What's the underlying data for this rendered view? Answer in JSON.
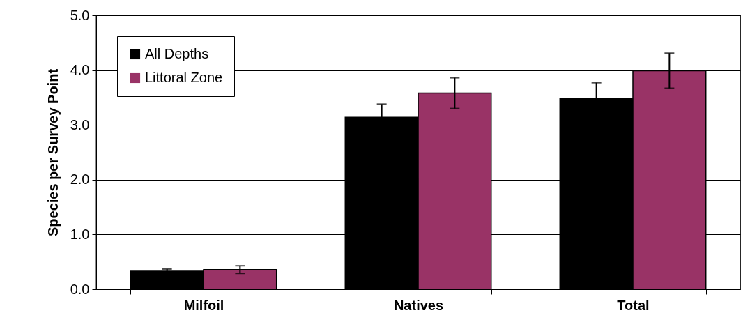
{
  "chart_data": {
    "type": "bar",
    "ylabel": "Species per Survey Point",
    "categories": [
      "Milfoil",
      "Natives",
      "Total"
    ],
    "series": [
      {
        "name": "All Depths",
        "color": "#000000",
        "values": [
          0.33,
          3.14,
          3.49
        ],
        "errors": [
          0.04,
          0.24,
          0.28
        ]
      },
      {
        "name": "Littoral Zone",
        "color": "#993366",
        "values": [
          0.36,
          3.58,
          3.99
        ],
        "errors": [
          0.07,
          0.28,
          0.32
        ]
      }
    ],
    "ylim": [
      0,
      5
    ],
    "yticks": [
      {
        "value": 0,
        "label": "0.0"
      },
      {
        "value": 1,
        "label": "1.0"
      },
      {
        "value": 2,
        "label": "2.0"
      },
      {
        "value": 3,
        "label": "3.0"
      },
      {
        "value": 4,
        "label": "4.0"
      },
      {
        "value": 5,
        "label": "5.0"
      }
    ],
    "grid": "y",
    "legend": "top left"
  }
}
